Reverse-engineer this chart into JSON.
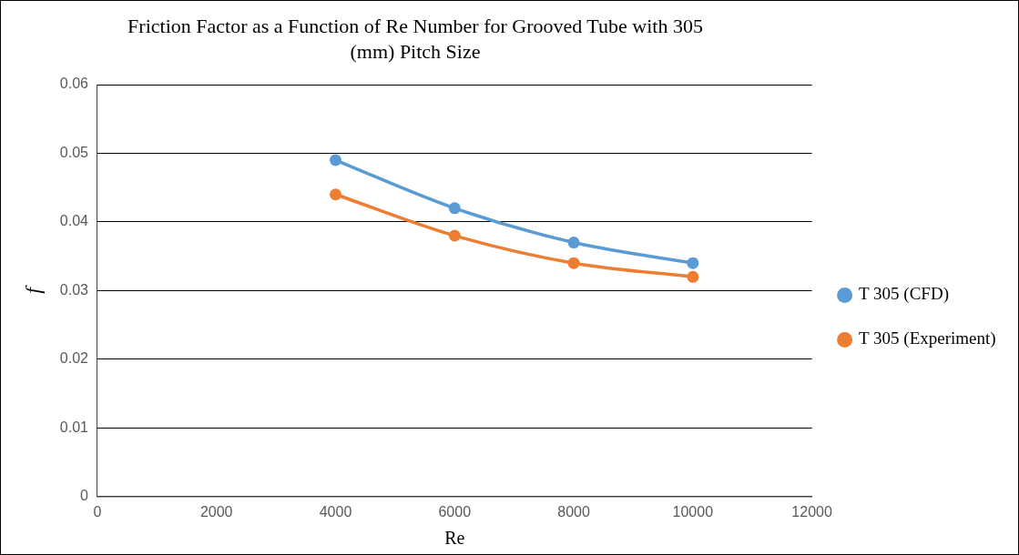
{
  "chart_data": {
    "type": "line",
    "title": "Friction Factor as a Function of Re Number for Grooved Tube with 305 (mm) Pitch Size",
    "xlabel": "Re",
    "ylabel": "f",
    "x": [
      4000,
      6000,
      8000,
      10000
    ],
    "series": [
      {
        "name": "T 305 (CFD)",
        "color": "#5b9bd5",
        "values": [
          0.049,
          0.042,
          0.037,
          0.034
        ]
      },
      {
        "name": "T 305 (Experiment)",
        "color": "#ed7d31",
        "values": [
          0.044,
          0.038,
          0.034,
          0.032
        ]
      }
    ],
    "xlim": [
      0,
      12000
    ],
    "xticks": [
      0,
      2000,
      4000,
      6000,
      8000,
      10000,
      12000
    ],
    "ylim": [
      0,
      0.06
    ],
    "yticks": [
      0,
      0.01,
      0.02,
      0.03,
      0.04,
      0.05,
      0.06
    ],
    "grid": "y",
    "legend": "right",
    "marker": "circle",
    "line_style": "solid"
  }
}
